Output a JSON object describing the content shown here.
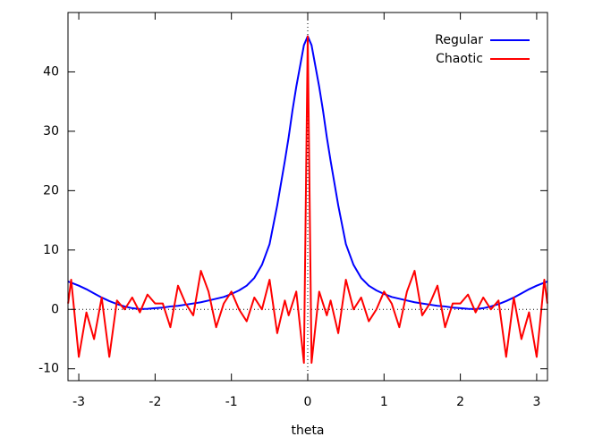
{
  "chart_data": {
    "type": "line",
    "x_label": "theta",
    "x": [
      -3.14,
      -3.1,
      -3.0,
      -2.9,
      -2.8,
      -2.7,
      -2.6,
      -2.5,
      -2.4,
      -2.3,
      -2.2,
      -2.1,
      -2.0,
      -1.9,
      -1.8,
      -1.7,
      -1.6,
      -1.5,
      -1.4,
      -1.3,
      -1.2,
      -1.1,
      -1.0,
      -0.9,
      -0.8,
      -0.7,
      -0.6,
      -0.5,
      -0.4,
      -0.3,
      -0.25,
      -0.2,
      -0.15,
      -0.1,
      -0.05,
      0,
      0.05,
      0.1,
      0.15,
      0.2,
      0.25,
      0.3,
      0.4,
      0.5,
      0.6,
      0.7,
      0.8,
      0.9,
      1.0,
      1.1,
      1.2,
      1.3,
      1.4,
      1.5,
      1.6,
      1.7,
      1.8,
      1.9,
      2.0,
      2.1,
      2.2,
      2.3,
      2.4,
      2.5,
      2.6,
      2.7,
      2.8,
      2.9,
      3.0,
      3.1,
      3.14
    ],
    "series": [
      {
        "name": "Regular",
        "color": "#0000ff",
        "values": [
          4.7,
          4.5,
          4.0,
          3.4,
          2.7,
          2.0,
          1.4,
          0.9,
          0.5,
          0.2,
          0.05,
          0.1,
          0.2,
          0.3,
          0.5,
          0.6,
          0.8,
          1.0,
          1.2,
          1.5,
          1.8,
          2.1,
          2.6,
          3.2,
          4.0,
          5.3,
          7.5,
          11,
          17.5,
          25,
          29,
          33.5,
          37.5,
          41,
          44.5,
          46,
          44.5,
          41,
          37.5,
          33.5,
          29,
          25,
          17.5,
          11,
          7.5,
          5.3,
          4.0,
          3.2,
          2.6,
          2.1,
          1.8,
          1.5,
          1.2,
          1.0,
          0.8,
          0.6,
          0.5,
          0.3,
          0.2,
          0.1,
          0.05,
          0.2,
          0.5,
          0.9,
          1.4,
          2.0,
          2.7,
          3.4,
          4.0,
          4.5,
          4.7
        ]
      },
      {
        "name": "Chaotic",
        "color": "#ff0000",
        "values": [
          1,
          5,
          -8,
          -0.5,
          -5,
          2,
          -8,
          1.5,
          0,
          2,
          -0.5,
          2.5,
          1,
          1,
          -3,
          4,
          1,
          -1,
          6.5,
          3,
          -3,
          1,
          3,
          0,
          -2,
          2,
          0,
          5,
          -4,
          1.5,
          -1,
          1,
          3,
          -3,
          -9,
          46,
          -9,
          -3,
          3,
          1,
          -1,
          1.5,
          -4,
          5,
          0,
          2,
          -2,
          0,
          3,
          1,
          -3,
          3,
          6.5,
          -1,
          1,
          4,
          -3,
          1,
          1,
          2.5,
          -0.5,
          2,
          0,
          1.5,
          -8,
          2,
          -5,
          -0.5,
          -8,
          5,
          1
        ]
      }
    ],
    "xlim": [
      -3.1416,
      3.1416
    ],
    "xticks": [
      -3,
      -2,
      -1,
      0,
      1,
      2,
      3
    ],
    "ylim": [
      -12,
      50
    ],
    "yticks": [
      -10,
      0,
      10,
      20,
      30,
      40
    ],
    "legend": "top-right"
  }
}
